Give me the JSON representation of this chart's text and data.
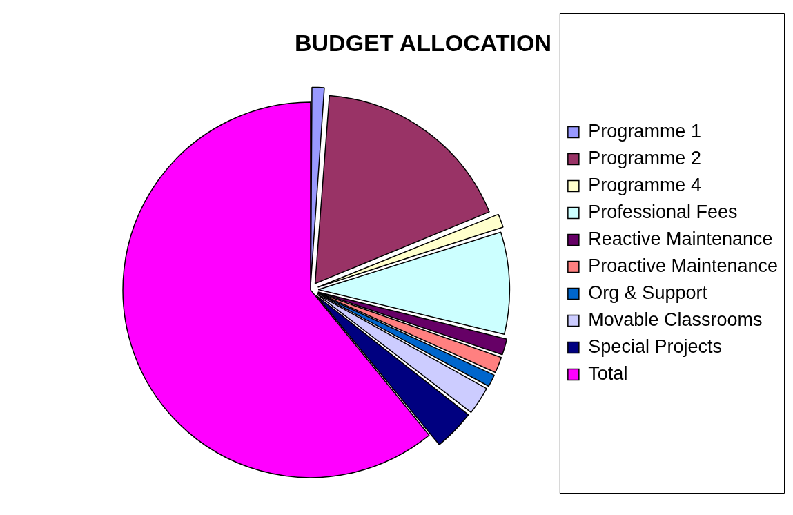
{
  "chart_data": {
    "type": "pie",
    "title": "BUDGET ALLOCATION",
    "categories": [
      "Programme 1",
      "Programme 2",
      "Programme 4",
      "Professional Fees",
      "Reactive Maintenance",
      "Proactive Maintenance",
      "Org & Support",
      "Movable Classrooms",
      "Special Projects",
      "Total"
    ],
    "values": [
      1.2,
      17.6,
      1.3,
      8.7,
      1.5,
      1.5,
      1.2,
      2.5,
      3.6,
      60.9
    ],
    "colors": [
      "#9999ff",
      "#993366",
      "#ffffcc",
      "#ccffff",
      "#660066",
      "#ff8080",
      "#0066cc",
      "#ccccff",
      "#000080",
      "#ff00ff"
    ],
    "legend": "right"
  }
}
